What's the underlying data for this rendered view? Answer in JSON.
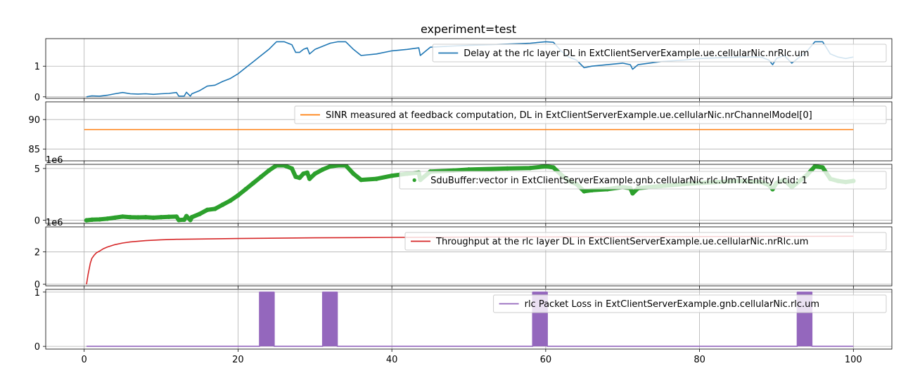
{
  "figure": {
    "title": "experiment=test"
  },
  "chart_data": [
    {
      "type": "line",
      "xlim": [
        -5,
        105
      ],
      "ylim": [
        -0.05,
        1.9
      ],
      "yticks": [
        0,
        1
      ],
      "grid": true,
      "legend_position": "top-right",
      "series": [
        {
          "name": "Delay at the rlc layer DL in ExtClientServerExample.ue.cellularNic.nrRlc.um",
          "color": "#1f77b4",
          "x": [
            0.3,
            1,
            2,
            3,
            4,
            5,
            6,
            7,
            8,
            9,
            10,
            11,
            12,
            12.3,
            13,
            13.3,
            13.8,
            14,
            15,
            16,
            17,
            18,
            19,
            20,
            21,
            22,
            23,
            24,
            25,
            26,
            27,
            27.5,
            28,
            28.5,
            29,
            29.3,
            30,
            31,
            32,
            33,
            34,
            35,
            36,
            38,
            40,
            42,
            43.5,
            43.7,
            45,
            48,
            50,
            55,
            58,
            60,
            61,
            62,
            63,
            64,
            65,
            66,
            68,
            70,
            71,
            71.3,
            72,
            75,
            78,
            80,
            85,
            88,
            89,
            89.5,
            90,
            91,
            92,
            93,
            94,
            95,
            96,
            97,
            98,
            99,
            100
          ],
          "y": [
            0.0,
            0.03,
            0.02,
            0.05,
            0.1,
            0.14,
            0.1,
            0.09,
            0.1,
            0.08,
            0.1,
            0.11,
            0.14,
            0.02,
            0.02,
            0.15,
            0.02,
            0.1,
            0.2,
            0.35,
            0.38,
            0.5,
            0.6,
            0.75,
            0.95,
            1.15,
            1.35,
            1.55,
            1.8,
            1.8,
            1.7,
            1.45,
            1.45,
            1.55,
            1.6,
            1.4,
            1.55,
            1.65,
            1.75,
            1.8,
            1.8,
            1.55,
            1.35,
            1.4,
            1.5,
            1.55,
            1.6,
            1.35,
            1.62,
            1.66,
            1.68,
            1.72,
            1.75,
            1.8,
            1.78,
            1.5,
            1.3,
            1.2,
            0.95,
            1.0,
            1.05,
            1.1,
            1.05,
            0.9,
            1.05,
            1.15,
            1.2,
            1.25,
            1.3,
            1.3,
            1.2,
            1.05,
            1.25,
            1.35,
            1.1,
            1.3,
            1.5,
            1.8,
            1.8,
            1.4,
            1.3,
            1.25,
            1.3
          ]
        }
      ]
    },
    {
      "type": "line",
      "xlim": [
        -5,
        105
      ],
      "ylim": [
        83,
        93
      ],
      "yticks": [
        85,
        90
      ],
      "grid": true,
      "legend_position": "top-right",
      "series": [
        {
          "name": "SINR measured at feedback computation, DL in ExtClientServerExample.ue.cellularNic.nrChannelModel[0]",
          "color": "#ff7f0e",
          "x": [
            0,
            100
          ],
          "y": [
            88.3,
            88.3
          ]
        }
      ]
    },
    {
      "type": "scatter",
      "offset_label": "1e6",
      "xlim": [
        -5,
        105
      ],
      "ylim": [
        -0.3,
        5.4
      ],
      "yticks": [
        0,
        5
      ],
      "grid": true,
      "legend_position": "right",
      "series": [
        {
          "name": "SduBuffer:vector in ExtClientServerExample.gnb.cellularNic.rlc.UmTxEntity Lcid: 1",
          "color": "#2ca02c",
          "x": [
            0.3,
            1,
            2,
            3,
            4,
            5,
            6,
            7,
            8,
            9,
            10,
            11,
            12,
            12.3,
            13,
            13.3,
            13.8,
            14,
            15,
            16,
            17,
            18,
            19,
            20,
            21,
            22,
            23,
            24,
            25,
            26,
            27,
            27.5,
            28,
            28.5,
            29,
            29.3,
            30,
            31,
            32,
            33,
            34,
            35,
            36,
            38,
            40,
            42,
            43.5,
            43.7,
            45,
            48,
            50,
            55,
            58,
            60,
            61,
            62,
            63,
            64,
            65,
            66,
            68,
            70,
            71,
            71.3,
            72,
            75,
            78,
            80,
            85,
            88,
            89,
            89.5,
            90,
            91,
            92,
            93,
            94,
            95,
            96,
            97,
            98,
            99,
            100
          ],
          "y": [
            0.0,
            0.05,
            0.08,
            0.15,
            0.25,
            0.35,
            0.3,
            0.28,
            0.3,
            0.25,
            0.3,
            0.33,
            0.35,
            0.02,
            0.05,
            0.4,
            0.02,
            0.3,
            0.6,
            1.0,
            1.1,
            1.5,
            1.9,
            2.4,
            3.0,
            3.6,
            4.2,
            4.8,
            5.3,
            5.3,
            5.0,
            4.2,
            4.1,
            4.5,
            4.6,
            4.0,
            4.5,
            4.9,
            5.2,
            5.3,
            5.3,
            4.5,
            3.9,
            4.0,
            4.3,
            4.5,
            4.6,
            3.9,
            4.7,
            4.8,
            4.9,
            5.0,
            5.05,
            5.2,
            5.1,
            4.4,
            3.8,
            3.5,
            2.8,
            2.9,
            3.0,
            3.2,
            3.1,
            2.6,
            3.1,
            3.3,
            3.5,
            3.6,
            3.8,
            3.7,
            3.4,
            3.0,
            3.6,
            3.9,
            3.2,
            3.8,
            4.4,
            5.2,
            5.1,
            4.0,
            3.8,
            3.7,
            3.8
          ]
        }
      ]
    },
    {
      "type": "line",
      "offset_label": "1e6",
      "xlim": [
        -5,
        105
      ],
      "ylim": [
        -0.1,
        3.55
      ],
      "yticks": [
        0,
        2
      ],
      "grid": true,
      "legend_position": "top-right",
      "series": [
        {
          "name": "Throughput at the rlc layer DL in ExtClientServerExample.ue.cellularNic.nrRlc.um",
          "color": "#d62728",
          "x": [
            0.3,
            0.5,
            0.8,
            1.0,
            1.3,
            1.6,
            2,
            2.5,
            3,
            4,
            5,
            6,
            8,
            10,
            12,
            15,
            20,
            30,
            40,
            50,
            60,
            70,
            80,
            90,
            100
          ],
          "y": [
            0.0,
            0.6,
            1.3,
            1.6,
            1.8,
            1.95,
            2.05,
            2.2,
            2.3,
            2.45,
            2.55,
            2.62,
            2.7,
            2.75,
            2.78,
            2.8,
            2.83,
            2.87,
            2.9,
            2.92,
            2.93,
            2.94,
            2.95,
            2.96,
            2.97
          ]
        }
      ]
    },
    {
      "type": "line",
      "xlim": [
        -5,
        105
      ],
      "ylim": [
        -0.05,
        1.05
      ],
      "yticks": [
        0,
        1
      ],
      "grid": true,
      "legend_position": "top-right",
      "series": [
        {
          "name": "rlc Packet Loss in ExtClientServerExample.gnb.cellularNic.rlc.um",
          "color": "#9467bd",
          "x": [
            0.3,
            22.8,
            22.8,
            24.7,
            24.7,
            31,
            31,
            32.9,
            32.9,
            58.3,
            58.3,
            60.2,
            60.2,
            92.7,
            92.7,
            94.6,
            94.6,
            100
          ],
          "y": [
            0,
            0,
            1,
            1,
            0,
            0,
            1,
            1,
            0,
            0,
            1,
            1,
            0,
            0,
            1,
            1,
            0,
            0
          ]
        }
      ]
    }
  ],
  "x_axis": {
    "ticks": [
      0,
      20,
      40,
      60,
      80,
      100
    ]
  }
}
